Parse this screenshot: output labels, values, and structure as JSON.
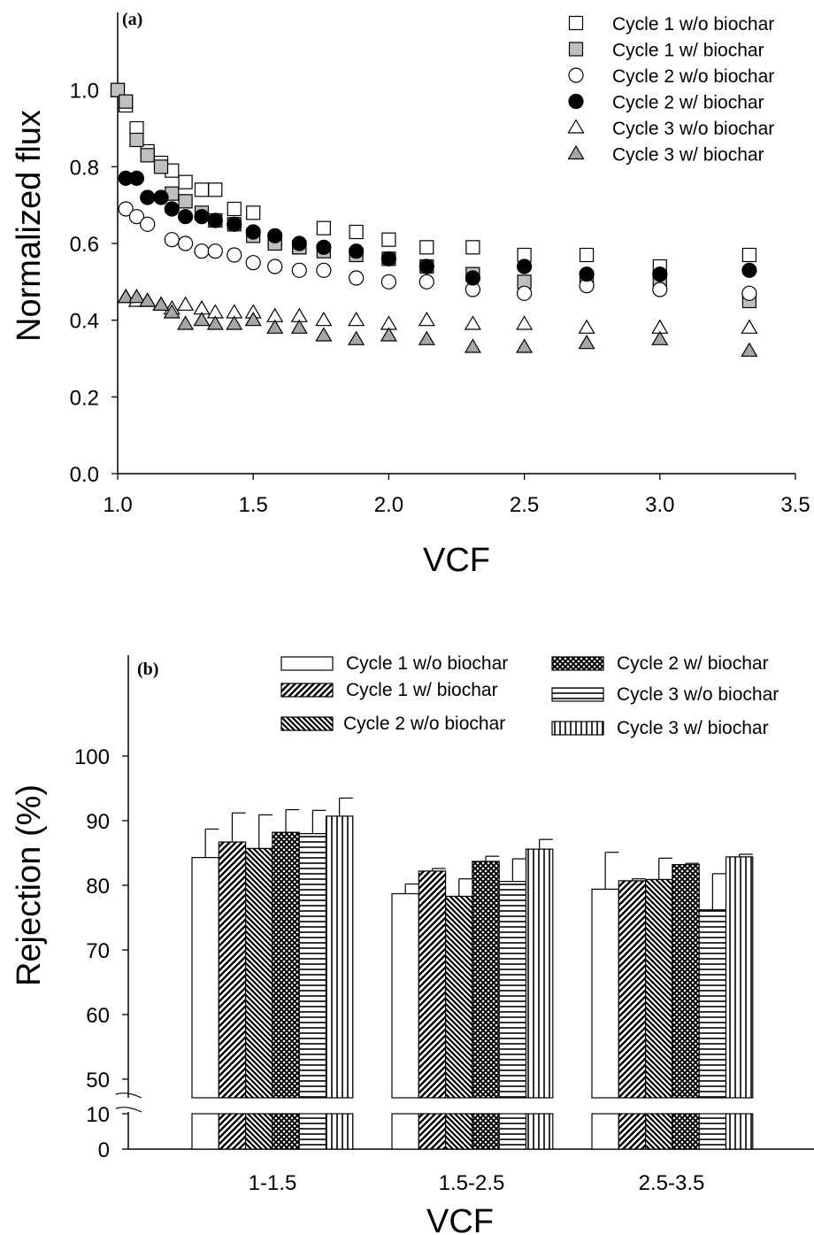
{
  "chart_data": [
    {
      "type": "scatter",
      "panel_label": "(a)",
      "xlabel": "VCF",
      "ylabel": "Normalized flux",
      "xlim": [
        1.0,
        3.5
      ],
      "ylim": [
        0.0,
        1.2
      ],
      "xticks": [
        "1.0",
        "1.5",
        "2.0",
        "2.5",
        "3.0",
        "3.5"
      ],
      "yticks": [
        "0.0",
        "0.2",
        "0.4",
        "0.6",
        "0.8",
        "1.0"
      ],
      "legend_position": "top-right",
      "grid": false,
      "series": [
        {
          "name": "Cycle 1 w/o biochar",
          "marker": "square",
          "fill": "#ffffff",
          "points": [
            [
              1.0,
              1.0
            ],
            [
              1.03,
              0.96
            ],
            [
              1.07,
              0.9
            ],
            [
              1.11,
              0.84
            ],
            [
              1.16,
              0.81
            ],
            [
              1.2,
              0.79
            ],
            [
              1.25,
              0.76
            ],
            [
              1.31,
              0.74
            ],
            [
              1.36,
              0.74
            ],
            [
              1.43,
              0.69
            ],
            [
              1.5,
              0.68
            ],
            [
              1.58,
              0.61
            ],
            [
              1.67,
              0.59
            ],
            [
              1.76,
              0.64
            ],
            [
              1.88,
              0.63
            ],
            [
              2.0,
              0.61
            ],
            [
              2.14,
              0.59
            ],
            [
              2.31,
              0.59
            ],
            [
              2.5,
              0.57
            ],
            [
              2.73,
              0.57
            ],
            [
              3.0,
              0.54
            ],
            [
              3.33,
              0.57
            ]
          ]
        },
        {
          "name": "Cycle 1 w/ biochar",
          "marker": "square",
          "fill": "#bfbfbf",
          "points": [
            [
              1.0,
              1.0
            ],
            [
              1.03,
              0.97
            ],
            [
              1.07,
              0.87
            ],
            [
              1.11,
              0.83
            ],
            [
              1.16,
              0.8
            ],
            [
              1.2,
              0.73
            ],
            [
              1.25,
              0.71
            ],
            [
              1.31,
              0.68
            ],
            [
              1.36,
              0.66
            ],
            [
              1.43,
              0.65
            ],
            [
              1.5,
              0.62
            ],
            [
              1.58,
              0.6
            ],
            [
              1.67,
              0.59
            ],
            [
              1.76,
              0.58
            ],
            [
              1.88,
              0.57
            ],
            [
              2.0,
              0.56
            ],
            [
              2.14,
              0.54
            ],
            [
              2.31,
              0.52
            ],
            [
              2.5,
              0.5
            ],
            [
              2.73,
              0.51
            ],
            [
              3.0,
              0.5
            ],
            [
              3.33,
              0.45
            ]
          ]
        },
        {
          "name": "Cycle 2 w/o biochar",
          "marker": "circle",
          "fill": "#ffffff",
          "points": [
            [
              1.03,
              0.69
            ],
            [
              1.07,
              0.67
            ],
            [
              1.11,
              0.65
            ],
            [
              1.2,
              0.61
            ],
            [
              1.25,
              0.6
            ],
            [
              1.31,
              0.58
            ],
            [
              1.36,
              0.58
            ],
            [
              1.43,
              0.57
            ],
            [
              1.5,
              0.55
            ],
            [
              1.58,
              0.54
            ],
            [
              1.67,
              0.53
            ],
            [
              1.76,
              0.53
            ],
            [
              1.88,
              0.51
            ],
            [
              2.0,
              0.5
            ],
            [
              2.14,
              0.5
            ],
            [
              2.31,
              0.48
            ],
            [
              2.5,
              0.47
            ],
            [
              2.73,
              0.49
            ],
            [
              3.0,
              0.48
            ],
            [
              3.33,
              0.47
            ]
          ]
        },
        {
          "name": "Cycle 2 w/ biochar",
          "marker": "circle",
          "fill": "#000000",
          "points": [
            [
              1.03,
              0.77
            ],
            [
              1.07,
              0.77
            ],
            [
              1.11,
              0.72
            ],
            [
              1.16,
              0.72
            ],
            [
              1.2,
              0.69
            ],
            [
              1.25,
              0.67
            ],
            [
              1.31,
              0.67
            ],
            [
              1.36,
              0.66
            ],
            [
              1.43,
              0.65
            ],
            [
              1.5,
              0.63
            ],
            [
              1.58,
              0.62
            ],
            [
              1.67,
              0.6
            ],
            [
              1.76,
              0.59
            ],
            [
              1.88,
              0.58
            ],
            [
              2.0,
              0.56
            ],
            [
              2.14,
              0.54
            ],
            [
              2.31,
              0.51
            ],
            [
              2.5,
              0.54
            ],
            [
              2.73,
              0.52
            ],
            [
              3.0,
              0.52
            ],
            [
              3.33,
              0.53
            ]
          ]
        },
        {
          "name": "Cycle 3 w/o biochar",
          "marker": "triangle",
          "fill": "#ffffff",
          "points": [
            [
              1.03,
              0.46
            ],
            [
              1.07,
              0.45
            ],
            [
              1.11,
              0.45
            ],
            [
              1.16,
              0.44
            ],
            [
              1.2,
              0.43
            ],
            [
              1.25,
              0.44
            ],
            [
              1.31,
              0.43
            ],
            [
              1.36,
              0.42
            ],
            [
              1.43,
              0.42
            ],
            [
              1.5,
              0.42
            ],
            [
              1.58,
              0.41
            ],
            [
              1.67,
              0.41
            ],
            [
              1.76,
              0.4
            ],
            [
              1.88,
              0.4
            ],
            [
              2.0,
              0.39
            ],
            [
              2.14,
              0.4
            ],
            [
              2.31,
              0.39
            ],
            [
              2.5,
              0.39
            ],
            [
              2.73,
              0.38
            ],
            [
              3.0,
              0.38
            ],
            [
              3.33,
              0.38
            ]
          ]
        },
        {
          "name": "Cycle 3 w/ biochar",
          "marker": "triangle",
          "fill": "#a6a6a6",
          "points": [
            [
              1.03,
              0.46
            ],
            [
              1.07,
              0.46
            ],
            [
              1.11,
              0.45
            ],
            [
              1.16,
              0.44
            ],
            [
              1.2,
              0.42
            ],
            [
              1.25,
              0.39
            ],
            [
              1.31,
              0.4
            ],
            [
              1.36,
              0.39
            ],
            [
              1.43,
              0.39
            ],
            [
              1.5,
              0.4
            ],
            [
              1.58,
              0.38
            ],
            [
              1.67,
              0.38
            ],
            [
              1.76,
              0.36
            ],
            [
              1.88,
              0.35
            ],
            [
              2.0,
              0.36
            ],
            [
              2.14,
              0.35
            ],
            [
              2.31,
              0.33
            ],
            [
              2.5,
              0.33
            ],
            [
              2.73,
              0.34
            ],
            [
              3.0,
              0.35
            ],
            [
              3.33,
              0.32
            ]
          ]
        }
      ]
    },
    {
      "type": "bar",
      "panel_label": "(b)",
      "xlabel": "VCF",
      "ylabel": "Rejection (%)",
      "categories": [
        "1-1.5",
        "1.5-2.5",
        "2.5-3.5"
      ],
      "ylim_lower": [
        0,
        10
      ],
      "ylim_upper": [
        50,
        110
      ],
      "yticks_lower": [
        "0",
        "10"
      ],
      "yticks_upper": [
        "50",
        "60",
        "70",
        "80",
        "90",
        "100"
      ],
      "axis_break": true,
      "legend_position": "top",
      "series": [
        {
          "name": "Cycle 1 w/o biochar",
          "pattern": "empty",
          "values": [
            84.3,
            78.7,
            79.4
          ],
          "errors": [
            4.4,
            1.5,
            5.7
          ]
        },
        {
          "name": "Cycle 1 w/ biochar",
          "pattern": "diagonal-up",
          "values": [
            86.7,
            82.2,
            80.7
          ],
          "errors": [
            4.5,
            0.4,
            0.3
          ]
        },
        {
          "name": "Cycle 2 w/o biochar",
          "pattern": "diagonal-down",
          "values": [
            85.7,
            78.3,
            80.9
          ],
          "errors": [
            5.2,
            2.7,
            3.3
          ]
        },
        {
          "name": "Cycle 2 w/ biochar",
          "pattern": "crosshatch",
          "values": [
            88.2,
            83.7,
            83.2
          ],
          "errors": [
            3.5,
            0.8,
            0.2
          ]
        },
        {
          "name": "Cycle 3 w/o biochar",
          "pattern": "horizontal",
          "values": [
            88.0,
            80.6,
            76.2
          ],
          "errors": [
            3.6,
            3.5,
            5.6
          ]
        },
        {
          "name": "Cycle 3 w/ biochar",
          "pattern": "vertical",
          "values": [
            90.7,
            85.6,
            84.4
          ],
          "errors": [
            2.8,
            1.5,
            0.4
          ]
        }
      ]
    }
  ]
}
